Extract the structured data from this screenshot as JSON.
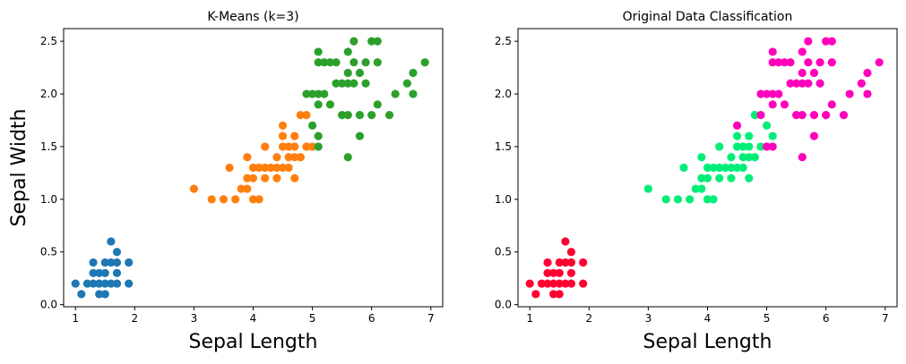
{
  "chart_data": [
    {
      "type": "scatter",
      "title": "K-Means (k=3)",
      "xlabel": "Sepal Length",
      "ylabel": "Sepal Width",
      "xlim": [
        0.8,
        7.2
      ],
      "ylim": [
        -0.02,
        2.62
      ],
      "xticks": [
        1,
        2,
        3,
        4,
        5,
        6,
        7
      ],
      "yticks": [
        0.0,
        0.5,
        1.0,
        1.5,
        2.0,
        2.5
      ],
      "ytick_labels": [
        "0.0",
        "0.5",
        "1.0",
        "1.5",
        "2.0",
        "2.5"
      ],
      "grid": false,
      "series": [
        {
          "color": "#1f77b4",
          "points": [
            [
              1.0,
              0.2
            ],
            [
              1.1,
              0.1
            ],
            [
              1.2,
              0.2
            ],
            [
              1.3,
              0.2
            ],
            [
              1.3,
              0.3
            ],
            [
              1.3,
              0.4
            ],
            [
              1.4,
              0.1
            ],
            [
              1.4,
              0.2
            ],
            [
              1.4,
              0.3
            ],
            [
              1.5,
              0.1
            ],
            [
              1.5,
              0.2
            ],
            [
              1.5,
              0.3
            ],
            [
              1.5,
              0.4
            ],
            [
              1.6,
              0.2
            ],
            [
              1.6,
              0.4
            ],
            [
              1.6,
              0.6
            ],
            [
              1.7,
              0.2
            ],
            [
              1.7,
              0.3
            ],
            [
              1.7,
              0.4
            ],
            [
              1.7,
              0.5
            ],
            [
              1.9,
              0.2
            ],
            [
              1.9,
              0.4
            ]
          ]
        },
        {
          "color": "#ff7f0e",
          "points": [
            [
              3.0,
              1.1
            ],
            [
              3.3,
              1.0
            ],
            [
              3.5,
              1.0
            ],
            [
              3.6,
              1.3
            ],
            [
              3.7,
              1.0
            ],
            [
              3.8,
              1.1
            ],
            [
              3.9,
              1.1
            ],
            [
              3.9,
              1.2
            ],
            [
              3.9,
              1.4
            ],
            [
              4.0,
              1.0
            ],
            [
              4.0,
              1.2
            ],
            [
              4.0,
              1.3
            ],
            [
              4.1,
              1.0
            ],
            [
              4.1,
              1.3
            ],
            [
              4.2,
              1.2
            ],
            [
              4.2,
              1.3
            ],
            [
              4.2,
              1.5
            ],
            [
              4.3,
              1.3
            ],
            [
              4.4,
              1.2
            ],
            [
              4.4,
              1.3
            ],
            [
              4.4,
              1.4
            ],
            [
              4.5,
              1.3
            ],
            [
              4.5,
              1.5
            ],
            [
              4.5,
              1.6
            ],
            [
              4.5,
              1.7
            ],
            [
              4.6,
              1.3
            ],
            [
              4.6,
              1.4
            ],
            [
              4.6,
              1.5
            ],
            [
              4.7,
              1.2
            ],
            [
              4.7,
              1.4
            ],
            [
              4.7,
              1.5
            ],
            [
              4.7,
              1.6
            ],
            [
              4.8,
              1.4
            ],
            [
              4.8,
              1.8
            ],
            [
              4.9,
              1.5
            ],
            [
              4.9,
              1.8
            ],
            [
              5.0,
              1.5
            ]
          ]
        },
        {
          "color": "#2ca02c",
          "points": [
            [
              4.9,
              2.0
            ],
            [
              5.0,
              1.7
            ],
            [
              5.0,
              2.0
            ],
            [
              5.1,
              1.5
            ],
            [
              5.1,
              1.6
            ],
            [
              5.1,
              1.9
            ],
            [
              5.1,
              2.0
            ],
            [
              5.1,
              2.3
            ],
            [
              5.1,
              2.4
            ],
            [
              5.2,
              2.0
            ],
            [
              5.2,
              2.3
            ],
            [
              5.3,
              1.9
            ],
            [
              5.3,
              2.3
            ],
            [
              5.4,
              2.1
            ],
            [
              5.4,
              2.3
            ],
            [
              5.5,
              1.8
            ],
            [
              5.5,
              2.1
            ],
            [
              5.6,
              1.4
            ],
            [
              5.6,
              1.8
            ],
            [
              5.6,
              2.1
            ],
            [
              5.6,
              2.2
            ],
            [
              5.6,
              2.4
            ],
            [
              5.7,
              2.1
            ],
            [
              5.7,
              2.3
            ],
            [
              5.7,
              2.5
            ],
            [
              5.8,
              1.6
            ],
            [
              5.8,
              1.8
            ],
            [
              5.8,
              2.2
            ],
            [
              5.9,
              2.1
            ],
            [
              5.9,
              2.3
            ],
            [
              6.0,
              1.8
            ],
            [
              6.0,
              2.5
            ],
            [
              6.1,
              1.9
            ],
            [
              6.1,
              2.3
            ],
            [
              6.1,
              2.5
            ],
            [
              6.3,
              1.8
            ],
            [
              6.4,
              2.0
            ],
            [
              6.6,
              2.1
            ],
            [
              6.7,
              2.0
            ],
            [
              6.7,
              2.2
            ],
            [
              6.9,
              2.3
            ]
          ]
        }
      ]
    },
    {
      "type": "scatter",
      "title": "Original Data Classification",
      "xlabel": "Sepal Length",
      "ylabel": "",
      "xlim": [
        0.8,
        7.2
      ],
      "ylim": [
        -0.02,
        2.62
      ],
      "xticks": [
        1,
        2,
        3,
        4,
        5,
        6,
        7
      ],
      "yticks": [
        0.0,
        0.5,
        1.0,
        1.5,
        2.0,
        2.5
      ],
      "ytick_labels": [
        "0.0",
        "0.5",
        "1.0",
        "1.5",
        "2.0",
        "2.5"
      ],
      "grid": false,
      "series": [
        {
          "color": "#ff0033",
          "points": [
            [
              1.0,
              0.2
            ],
            [
              1.1,
              0.1
            ],
            [
              1.2,
              0.2
            ],
            [
              1.3,
              0.2
            ],
            [
              1.3,
              0.3
            ],
            [
              1.3,
              0.4
            ],
            [
              1.4,
              0.1
            ],
            [
              1.4,
              0.2
            ],
            [
              1.4,
              0.3
            ],
            [
              1.5,
              0.1
            ],
            [
              1.5,
              0.2
            ],
            [
              1.5,
              0.3
            ],
            [
              1.5,
              0.4
            ],
            [
              1.6,
              0.2
            ],
            [
              1.6,
              0.4
            ],
            [
              1.6,
              0.6
            ],
            [
              1.7,
              0.2
            ],
            [
              1.7,
              0.3
            ],
            [
              1.7,
              0.4
            ],
            [
              1.7,
              0.5
            ],
            [
              1.9,
              0.2
            ],
            [
              1.9,
              0.4
            ]
          ]
        },
        {
          "color": "#00ee77",
          "points": [
            [
              3.0,
              1.1
            ],
            [
              3.3,
              1.0
            ],
            [
              3.5,
              1.0
            ],
            [
              3.6,
              1.3
            ],
            [
              3.7,
              1.0
            ],
            [
              3.8,
              1.1
            ],
            [
              3.9,
              1.1
            ],
            [
              3.9,
              1.2
            ],
            [
              3.9,
              1.4
            ],
            [
              4.0,
              1.0
            ],
            [
              4.0,
              1.2
            ],
            [
              4.0,
              1.3
            ],
            [
              4.1,
              1.0
            ],
            [
              4.1,
              1.3
            ],
            [
              4.2,
              1.2
            ],
            [
              4.2,
              1.3
            ],
            [
              4.2,
              1.5
            ],
            [
              4.3,
              1.3
            ],
            [
              4.4,
              1.2
            ],
            [
              4.4,
              1.3
            ],
            [
              4.4,
              1.4
            ],
            [
              4.5,
              1.3
            ],
            [
              4.5,
              1.5
            ],
            [
              4.5,
              1.6
            ],
            [
              4.6,
              1.3
            ],
            [
              4.6,
              1.4
            ],
            [
              4.6,
              1.5
            ],
            [
              4.7,
              1.2
            ],
            [
              4.7,
              1.4
            ],
            [
              4.7,
              1.5
            ],
            [
              4.7,
              1.6
            ],
            [
              4.8,
              1.4
            ],
            [
              4.8,
              1.8
            ],
            [
              4.9,
              1.5
            ],
            [
              5.0,
              1.7
            ],
            [
              5.1,
              1.6
            ]
          ]
        },
        {
          "color": "#ff00bb",
          "points": [
            [
              4.5,
              1.7
            ],
            [
              4.9,
              1.8
            ],
            [
              4.9,
              2.0
            ],
            [
              5.0,
              1.5
            ],
            [
              5.0,
              2.0
            ],
            [
              5.1,
              1.5
            ],
            [
              5.1,
              1.9
            ],
            [
              5.1,
              2.0
            ],
            [
              5.1,
              2.3
            ],
            [
              5.1,
              2.4
            ],
            [
              5.2,
              2.0
            ],
            [
              5.2,
              2.3
            ],
            [
              5.3,
              1.9
            ],
            [
              5.3,
              2.3
            ],
            [
              5.4,
              2.1
            ],
            [
              5.4,
              2.3
            ],
            [
              5.5,
              1.8
            ],
            [
              5.5,
              2.1
            ],
            [
              5.6,
              1.4
            ],
            [
              5.6,
              1.8
            ],
            [
              5.6,
              2.1
            ],
            [
              5.6,
              2.2
            ],
            [
              5.6,
              2.4
            ],
            [
              5.7,
              2.1
            ],
            [
              5.7,
              2.3
            ],
            [
              5.7,
              2.5
            ],
            [
              5.8,
              1.6
            ],
            [
              5.8,
              1.8
            ],
            [
              5.8,
              2.2
            ],
            [
              5.9,
              2.1
            ],
            [
              5.9,
              2.3
            ],
            [
              6.0,
              1.8
            ],
            [
              6.0,
              2.5
            ],
            [
              6.1,
              1.9
            ],
            [
              6.1,
              2.3
            ],
            [
              6.1,
              2.5
            ],
            [
              6.3,
              1.8
            ],
            [
              6.4,
              2.0
            ],
            [
              6.6,
              2.1
            ],
            [
              6.7,
              2.0
            ],
            [
              6.7,
              2.2
            ],
            [
              6.9,
              2.3
            ]
          ]
        }
      ]
    }
  ]
}
